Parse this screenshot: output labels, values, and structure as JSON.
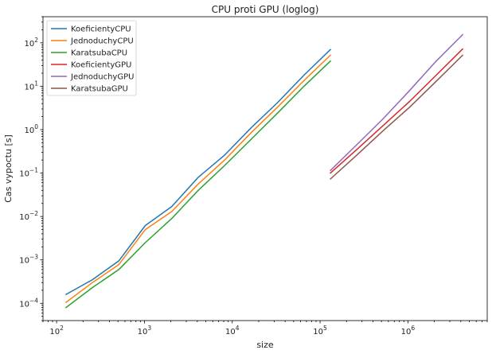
{
  "chart_data": {
    "type": "line",
    "title": "CPU proti GPU (loglog)",
    "xlabel": "size",
    "ylabel": "Cas vypoctu [s]",
    "xscale": "log",
    "yscale": "log",
    "xlim": [
      70,
      8000000
    ],
    "ylim": [
      4e-05,
      400
    ],
    "grid": false,
    "legend_position": "top-left",
    "x_ticks": [
      {
        "base": "10",
        "exp": "2",
        "value": 100
      },
      {
        "base": "10",
        "exp": "3",
        "value": 1000
      },
      {
        "base": "10",
        "exp": "4",
        "value": 10000
      },
      {
        "base": "10",
        "exp": "5",
        "value": 100000
      },
      {
        "base": "10",
        "exp": "6",
        "value": 1000000
      }
    ],
    "y_ticks": [
      {
        "base": "10",
        "exp": "−4",
        "value": 0.0001
      },
      {
        "base": "10",
        "exp": "−3",
        "value": 0.001
      },
      {
        "base": "10",
        "exp": "−2",
        "value": 0.01
      },
      {
        "base": "10",
        "exp": "−1",
        "value": 0.1
      },
      {
        "base": "10",
        "exp": "0",
        "value": 1
      },
      {
        "base": "10",
        "exp": "1",
        "value": 10
      },
      {
        "base": "10",
        "exp": "2",
        "value": 100
      }
    ],
    "series": [
      {
        "name": "KoeficientyCPU",
        "color": "#1f77b4",
        "x": [
          128,
          256,
          512,
          1024,
          2048,
          4096,
          8192,
          16384,
          32768,
          65536,
          131072
        ],
        "y": [
          0.00016,
          0.00035,
          0.00095,
          0.0062,
          0.017,
          0.08,
          0.26,
          1.1,
          4.2,
          18,
          70
        ]
      },
      {
        "name": "JednoduchyCPU",
        "color": "#ff7f0e",
        "x": [
          128,
          256,
          512,
          1024,
          2048,
          4096,
          8192,
          16384,
          32768,
          65536,
          131072
        ],
        "y": [
          0.000105,
          0.0003,
          0.00078,
          0.005,
          0.013,
          0.056,
          0.2,
          0.85,
          3.3,
          13.5,
          52
        ]
      },
      {
        "name": "KaratsubaCPU",
        "color": "#2ca02c",
        "x": [
          128,
          256,
          512,
          1024,
          2048,
          4096,
          8192,
          16384,
          32768,
          65536,
          131072
        ],
        "y": [
          8e-05,
          0.00023,
          0.0006,
          0.0025,
          0.009,
          0.04,
          0.15,
          0.6,
          2.4,
          10,
          38
        ]
      },
      {
        "name": "KoeficientyGPU",
        "color": "#d62728",
        "x": [
          131072,
          262144,
          524288,
          1048576,
          2097152,
          4194304
        ],
        "y": [
          0.1,
          0.35,
          1.25,
          4.5,
          18,
          72
        ]
      },
      {
        "name": "JednoduchyGPU",
        "color": "#9467bd",
        "x": [
          131072,
          262144,
          524288,
          1048576,
          2097152,
          4194304
        ],
        "y": [
          0.115,
          0.45,
          1.8,
          8,
          38,
          155
        ]
      },
      {
        "name": "KaratsubaGPU",
        "color": "#8c564b",
        "x": [
          131072,
          262144,
          524288,
          1048576,
          2097152,
          4194304
        ],
        "y": [
          0.073,
          0.26,
          0.95,
          3.3,
          13,
          52
        ]
      }
    ]
  }
}
